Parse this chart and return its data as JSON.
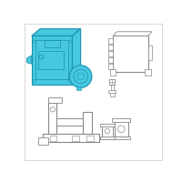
{
  "bg_color": "#ffffff",
  "border_color": "#c8c8c8",
  "cyan_fill": "#45c8e0",
  "cyan_stroke": "#1a90b0",
  "gray_stroke": "#888888",
  "gray_stroke2": "#aaaaaa"
}
